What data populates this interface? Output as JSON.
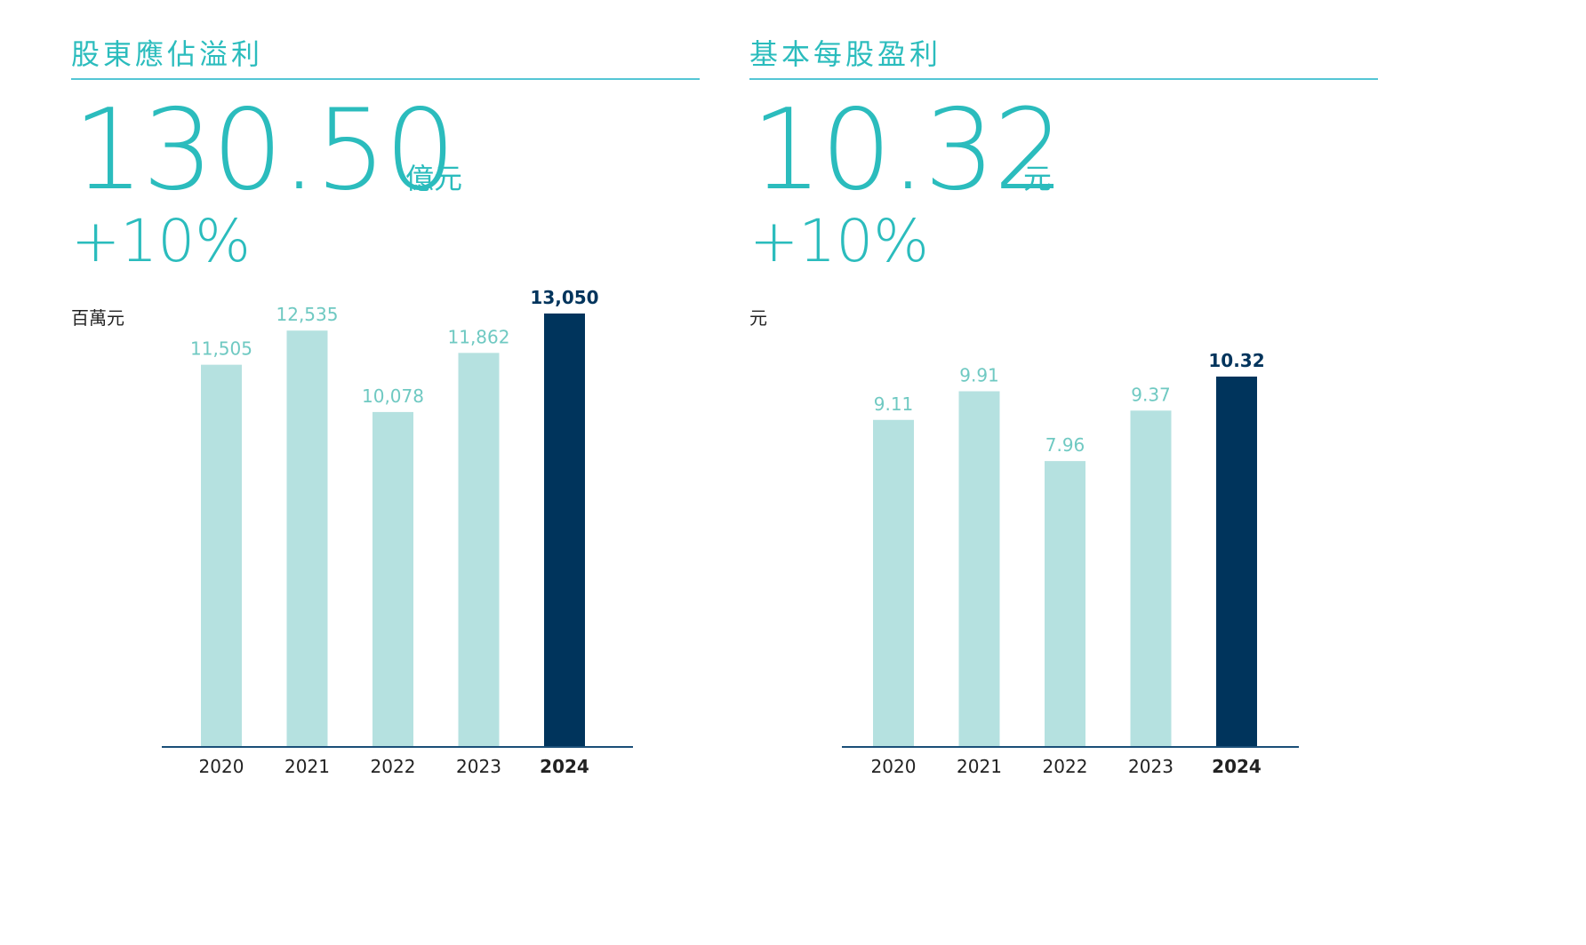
{
  "panels": [
    {
      "title": "股東應佔溢利",
      "big_value": "130.50",
      "big_unit": "億元",
      "change": "+10%",
      "unit_label": "百萬元"
    },
    {
      "title": "基本每股盈利",
      "big_value": "10.32",
      "big_unit": "元",
      "change": "+10%",
      "unit_label": "元"
    }
  ],
  "colors": {
    "accent": "#2bbcbd",
    "rule": "#54c6d5",
    "bar_light": "#b5e1e0",
    "bar_highlight": "#00345c",
    "label_light": "#6fc9c2",
    "axis": "#1a4f78",
    "tick": "#222222"
  },
  "chart_data": [
    {
      "type": "bar",
      "categories": [
        "2020",
        "2021",
        "2022",
        "2023",
        "2024"
      ],
      "values": [
        11505,
        12535,
        10078,
        11862,
        13050
      ],
      "value_labels": [
        "11,505",
        "12,535",
        "10,078",
        "11,862",
        "13,050"
      ],
      "highlight_index": 4,
      "ylabel": "百萬元",
      "ylim": [
        0,
        13050
      ],
      "grid": false
    },
    {
      "type": "bar",
      "categories": [
        "2020",
        "2021",
        "2022",
        "2023",
        "2024"
      ],
      "values": [
        9.11,
        9.91,
        7.96,
        9.37,
        10.32
      ],
      "value_labels": [
        "9.11",
        "9.91",
        "7.96",
        "9.37",
        "10.32"
      ],
      "highlight_index": 4,
      "ylabel": "元",
      "ylim": [
        0,
        10.32
      ],
      "grid": false
    }
  ]
}
